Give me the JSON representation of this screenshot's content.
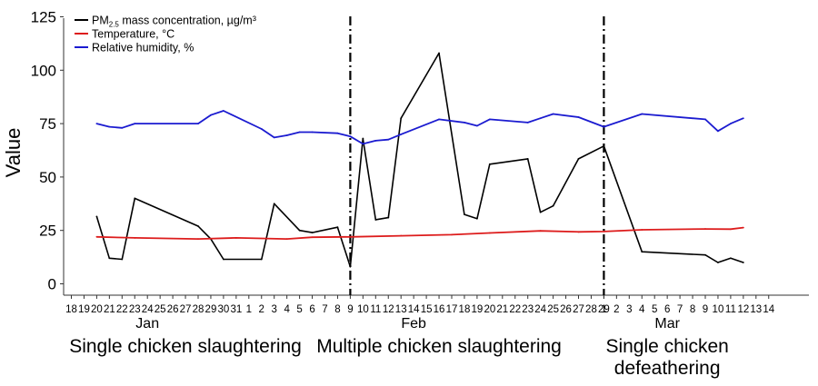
{
  "chart_data": {
    "type": "line",
    "ylabel": "Value",
    "ylim": [
      0,
      125
    ],
    "y_ticks": [
      0,
      25,
      50,
      75,
      100,
      125
    ],
    "x_tick_labels": [
      "18",
      "19",
      "20",
      "21",
      "22",
      "23",
      "24",
      "25",
      "26",
      "27",
      "28",
      "29",
      "30",
      "31",
      "1",
      "2",
      "3",
      "4",
      "5",
      "6",
      "7",
      "8",
      "9",
      "10",
      "11",
      "12",
      "13",
      "14",
      "15",
      "16",
      "17",
      "18",
      "19",
      "20",
      "21",
      "22",
      "23",
      "24",
      "25",
      "26",
      "27",
      "28",
      "29",
      "1",
      "2",
      "3",
      "4",
      "5",
      "6",
      "7",
      "8",
      "9",
      "10",
      "11",
      "12",
      "13",
      "14"
    ],
    "x_tick_dates": [
      "2019-01-18",
      "2019-01-19",
      "2019-01-20",
      "2019-01-21",
      "2019-01-22",
      "2019-01-23",
      "2019-01-24",
      "2019-01-25",
      "2019-01-26",
      "2019-01-27",
      "2019-01-28",
      "2019-01-29",
      "2019-01-30",
      "2019-01-31",
      "2019-02-01",
      "2019-02-02",
      "2019-02-03",
      "2019-02-04",
      "2019-02-05",
      "2019-02-06",
      "2019-02-07",
      "2019-02-08",
      "2019-02-09",
      "2019-02-10",
      "2019-02-11",
      "2019-02-12",
      "2019-02-13",
      "2019-02-14",
      "2019-02-15",
      "2019-02-16",
      "2019-02-17",
      "2019-02-18",
      "2019-02-19",
      "2019-02-20",
      "2019-02-21",
      "2019-02-22",
      "2019-02-23",
      "2019-02-24",
      "2019-02-25",
      "2019-02-26",
      "2019-02-27",
      "2019-02-28",
      "2019-02-29",
      "2019-03-01",
      "2019-03-02",
      "2019-03-03",
      "2019-03-04",
      "2019-03-05",
      "2019-03-06",
      "2019-03-07",
      "2019-03-08",
      "2019-03-09",
      "2019-03-10",
      "2019-03-11",
      "2019-03-12",
      "2019-03-13",
      "2019-03-14"
    ],
    "months": [
      {
        "label": "Jan",
        "center_date": "2019-01-24"
      },
      {
        "label": "Feb",
        "center_date": "2019-02-14"
      },
      {
        "label": "Mar",
        "center_date": "2019-03-06"
      }
    ],
    "periods": [
      {
        "label": "Single chicken slaughtering",
        "center_date": "2019-01-27"
      },
      {
        "label": "Multiple chicken slaughtering",
        "center_date": "2019-02-16"
      },
      {
        "label": "Single chicken defeathering",
        "center_date": "2019-03-06"
      }
    ],
    "dividers": [
      "2019-02-09",
      "2019-03-01"
    ],
    "legend_position": "top-left",
    "series": [
      {
        "name": "PM2.5 mass concentration, µg/m³",
        "legend_prefix": "PM",
        "legend_sub": "2.5",
        "legend_suffix": " mass concentration, µg/m³",
        "color": "#000000",
        "points": [
          {
            "x": "2019-01-20",
            "y": 31.5
          },
          {
            "x": "2019-01-21",
            "y": 12
          },
          {
            "x": "2019-01-22",
            "y": 11.5
          },
          {
            "x": "2019-01-23",
            "y": 40
          },
          {
            "x": "2019-01-28",
            "y": 27
          },
          {
            "x": "2019-01-29",
            "y": 21
          },
          {
            "x": "2019-01-30",
            "y": 11.5
          },
          {
            "x": "2019-02-02",
            "y": 11.5
          },
          {
            "x": "2019-02-03",
            "y": 37.5
          },
          {
            "x": "2019-02-05",
            "y": 25
          },
          {
            "x": "2019-02-06",
            "y": 24
          },
          {
            "x": "2019-02-08",
            "y": 26.5
          },
          {
            "x": "2019-02-09",
            "y": 8
          },
          {
            "x": "2019-02-10",
            "y": 68
          },
          {
            "x": "2019-02-11",
            "y": 30
          },
          {
            "x": "2019-02-12",
            "y": 31
          },
          {
            "x": "2019-02-13",
            "y": 77.5
          },
          {
            "x": "2019-02-16",
            "y": 108
          },
          {
            "x": "2019-02-18",
            "y": 32.5
          },
          {
            "x": "2019-02-19",
            "y": 30.5
          },
          {
            "x": "2019-02-20",
            "y": 56
          },
          {
            "x": "2019-02-23",
            "y": 58.5
          },
          {
            "x": "2019-02-24",
            "y": 33.5
          },
          {
            "x": "2019-02-25",
            "y": 36.5
          },
          {
            "x": "2019-02-27",
            "y": 58.5
          },
          {
            "x": "2019-03-01",
            "y": 64.5
          },
          {
            "x": "2019-03-04",
            "y": 15
          },
          {
            "x": "2019-03-09",
            "y": 13.5
          },
          {
            "x": "2019-03-10",
            "y": 10
          },
          {
            "x": "2019-03-11",
            "y": 12
          },
          {
            "x": "2019-03-12",
            "y": 10
          }
        ]
      },
      {
        "name": "Temperature, °C",
        "color": "#dd1c1c",
        "points": [
          {
            "x": "2019-01-20",
            "y": 22
          },
          {
            "x": "2019-01-23",
            "y": 21.5
          },
          {
            "x": "2019-01-28",
            "y": 21
          },
          {
            "x": "2019-01-31",
            "y": 21.5
          },
          {
            "x": "2019-02-04",
            "y": 21
          },
          {
            "x": "2019-02-06",
            "y": 21.8
          },
          {
            "x": "2019-02-09",
            "y": 22
          },
          {
            "x": "2019-02-13",
            "y": 22.5
          },
          {
            "x": "2019-02-17",
            "y": 23
          },
          {
            "x": "2019-02-20",
            "y": 23.8
          },
          {
            "x": "2019-02-24",
            "y": 24.8
          },
          {
            "x": "2019-02-27",
            "y": 24.3
          },
          {
            "x": "2019-03-01",
            "y": 24.5
          },
          {
            "x": "2019-03-04",
            "y": 25.3
          },
          {
            "x": "2019-03-09",
            "y": 25.7
          },
          {
            "x": "2019-03-11",
            "y": 25.6
          },
          {
            "x": "2019-03-12",
            "y": 26.3
          }
        ]
      },
      {
        "name": "Relative humidity, %",
        "color": "#1b1bd0",
        "points": [
          {
            "x": "2019-01-20",
            "y": 75
          },
          {
            "x": "2019-01-21",
            "y": 73.5
          },
          {
            "x": "2019-01-22",
            "y": 73
          },
          {
            "x": "2019-01-23",
            "y": 75
          },
          {
            "x": "2019-01-28",
            "y": 75
          },
          {
            "x": "2019-01-29",
            "y": 79
          },
          {
            "x": "2019-01-30",
            "y": 81
          },
          {
            "x": "2019-02-02",
            "y": 72.5
          },
          {
            "x": "2019-02-03",
            "y": 68.5
          },
          {
            "x": "2019-02-04",
            "y": 69.5
          },
          {
            "x": "2019-02-05",
            "y": 71
          },
          {
            "x": "2019-02-06",
            "y": 71
          },
          {
            "x": "2019-02-08",
            "y": 70.5
          },
          {
            "x": "2019-02-09",
            "y": 69
          },
          {
            "x": "2019-02-10",
            "y": 65.5
          },
          {
            "x": "2019-02-11",
            "y": 67
          },
          {
            "x": "2019-02-12",
            "y": 67.5
          },
          {
            "x": "2019-02-13",
            "y": 70
          },
          {
            "x": "2019-02-16",
            "y": 77
          },
          {
            "x": "2019-02-18",
            "y": 75.5
          },
          {
            "x": "2019-02-19",
            "y": 74
          },
          {
            "x": "2019-02-20",
            "y": 77
          },
          {
            "x": "2019-02-23",
            "y": 75.5
          },
          {
            "x": "2019-02-24",
            "y": 77.5
          },
          {
            "x": "2019-02-25",
            "y": 79.5
          },
          {
            "x": "2019-02-27",
            "y": 78
          },
          {
            "x": "2019-03-01",
            "y": 73.5
          },
          {
            "x": "2019-03-04",
            "y": 79.5
          },
          {
            "x": "2019-03-09",
            "y": 77
          },
          {
            "x": "2019-03-10",
            "y": 71.5
          },
          {
            "x": "2019-03-11",
            "y": 75
          },
          {
            "x": "2019-03-12",
            "y": 77.5
          }
        ]
      }
    ]
  }
}
